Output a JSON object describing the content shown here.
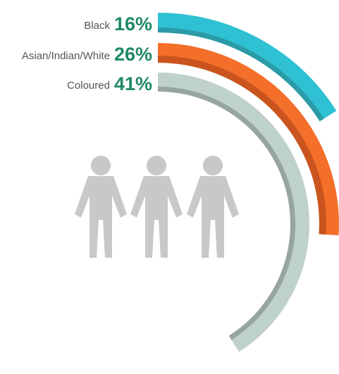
{
  "chart_data": {
    "type": "radial-bar",
    "series": [
      {
        "category": "Black",
        "value": 16,
        "value_label": "16%",
        "color": "#2fc1d3",
        "shade": "#2a9ba6"
      },
      {
        "category": "Asian/Indian/White",
        "value": 26,
        "value_label": "26%",
        "color": "#f36f2a",
        "shade": "#c9541e"
      },
      {
        "category": "Coloured",
        "value": 41,
        "value_label": "41%",
        "color": "#bfd1cc",
        "shade": "#97a5a1"
      }
    ],
    "scale_max": 100,
    "label_color": "#555555",
    "value_color": "#1f8a63",
    "figure_color": "#c8c8c8",
    "icons": [
      "person-icon",
      "person-icon",
      "person-icon"
    ]
  }
}
